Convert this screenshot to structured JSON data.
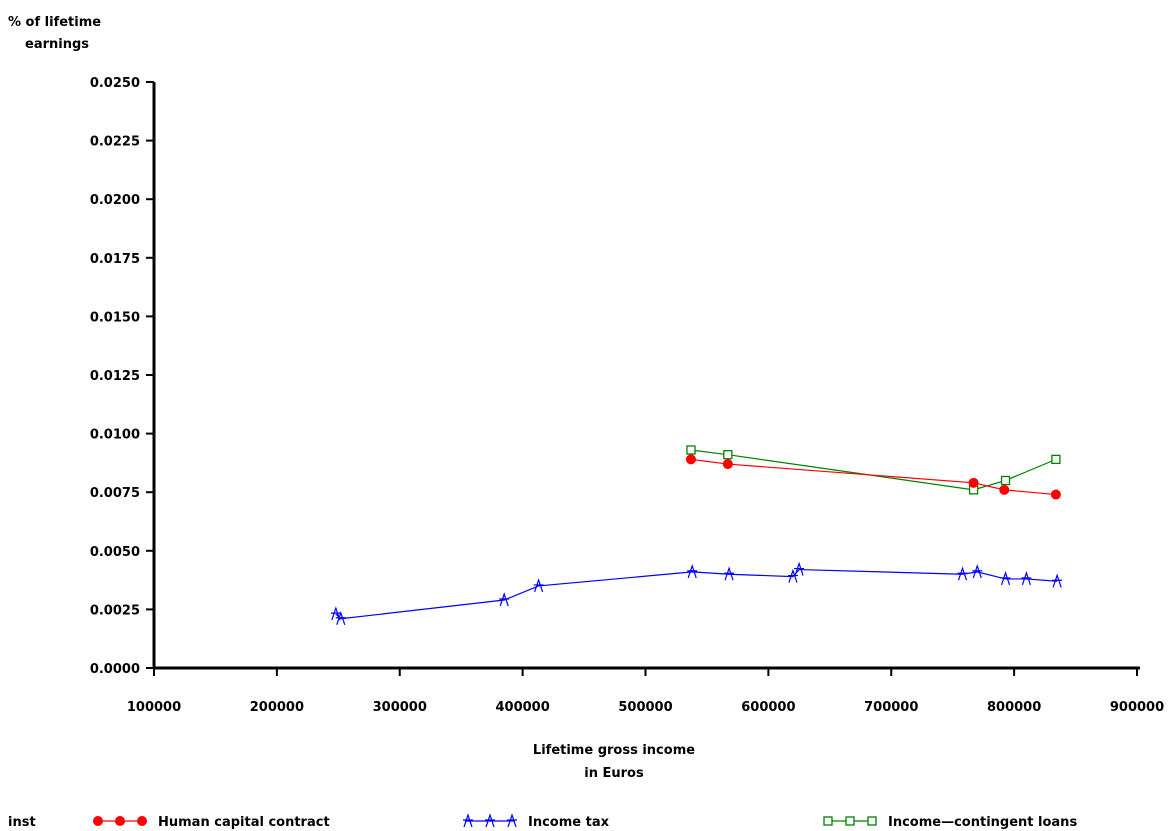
{
  "chart_data": {
    "type": "line",
    "title": "",
    "ylabel_lines": [
      "% of lifetime",
      "earnings"
    ],
    "xlabel_lines": [
      "Lifetime gross income",
      "in Euros"
    ],
    "xlim": [
      100000,
      900000
    ],
    "ylim": [
      0,
      0.025
    ],
    "x_ticks": [
      100000,
      200000,
      300000,
      400000,
      500000,
      600000,
      700000,
      800000,
      900000
    ],
    "x_tick_labels": [
      "100000",
      "200000",
      "300000",
      "400000",
      "500000",
      "600000",
      "700000",
      "800000",
      "900000"
    ],
    "y_ticks": [
      0,
      0.0025,
      0.005,
      0.0075,
      0.01,
      0.0125,
      0.015,
      0.0175,
      0.02,
      0.0225,
      0.025
    ],
    "y_tick_labels": [
      "0.0000",
      "0.0025",
      "0.0050",
      "0.0075",
      "0.0100",
      "0.0125",
      "0.0150",
      "0.0175",
      "0.0200",
      "0.0225",
      "0.0250"
    ],
    "grid": false,
    "legend_position": "bottom",
    "legend_title": "inst",
    "series": [
      {
        "name": "Human capital contract",
        "color": "#ff0000",
        "marker": "filled-circle",
        "x": [
          537000,
          567000,
          767000,
          792000,
          834000
        ],
        "y": [
          0.0089,
          0.0087,
          0.0079,
          0.0076,
          0.0074
        ]
      },
      {
        "name": "Income tax",
        "color": "#0000ff",
        "marker": "star",
        "x": [
          248000,
          252000,
          385000,
          413000,
          538000,
          568000,
          620000,
          625000,
          758000,
          770000,
          793000,
          810000,
          835000
        ],
        "y": [
          0.0023,
          0.0021,
          0.0029,
          0.0035,
          0.0041,
          0.004,
          0.0039,
          0.0042,
          0.004,
          0.0041,
          0.0038,
          0.0038,
          0.0037
        ]
      },
      {
        "name": "Income—contingent loans",
        "color": "#008000",
        "marker": "open-square",
        "x": [
          537000,
          567000,
          767000,
          793000,
          834000
        ],
        "y": [
          0.0093,
          0.0091,
          0.0076,
          0.008,
          0.0089
        ]
      }
    ]
  }
}
